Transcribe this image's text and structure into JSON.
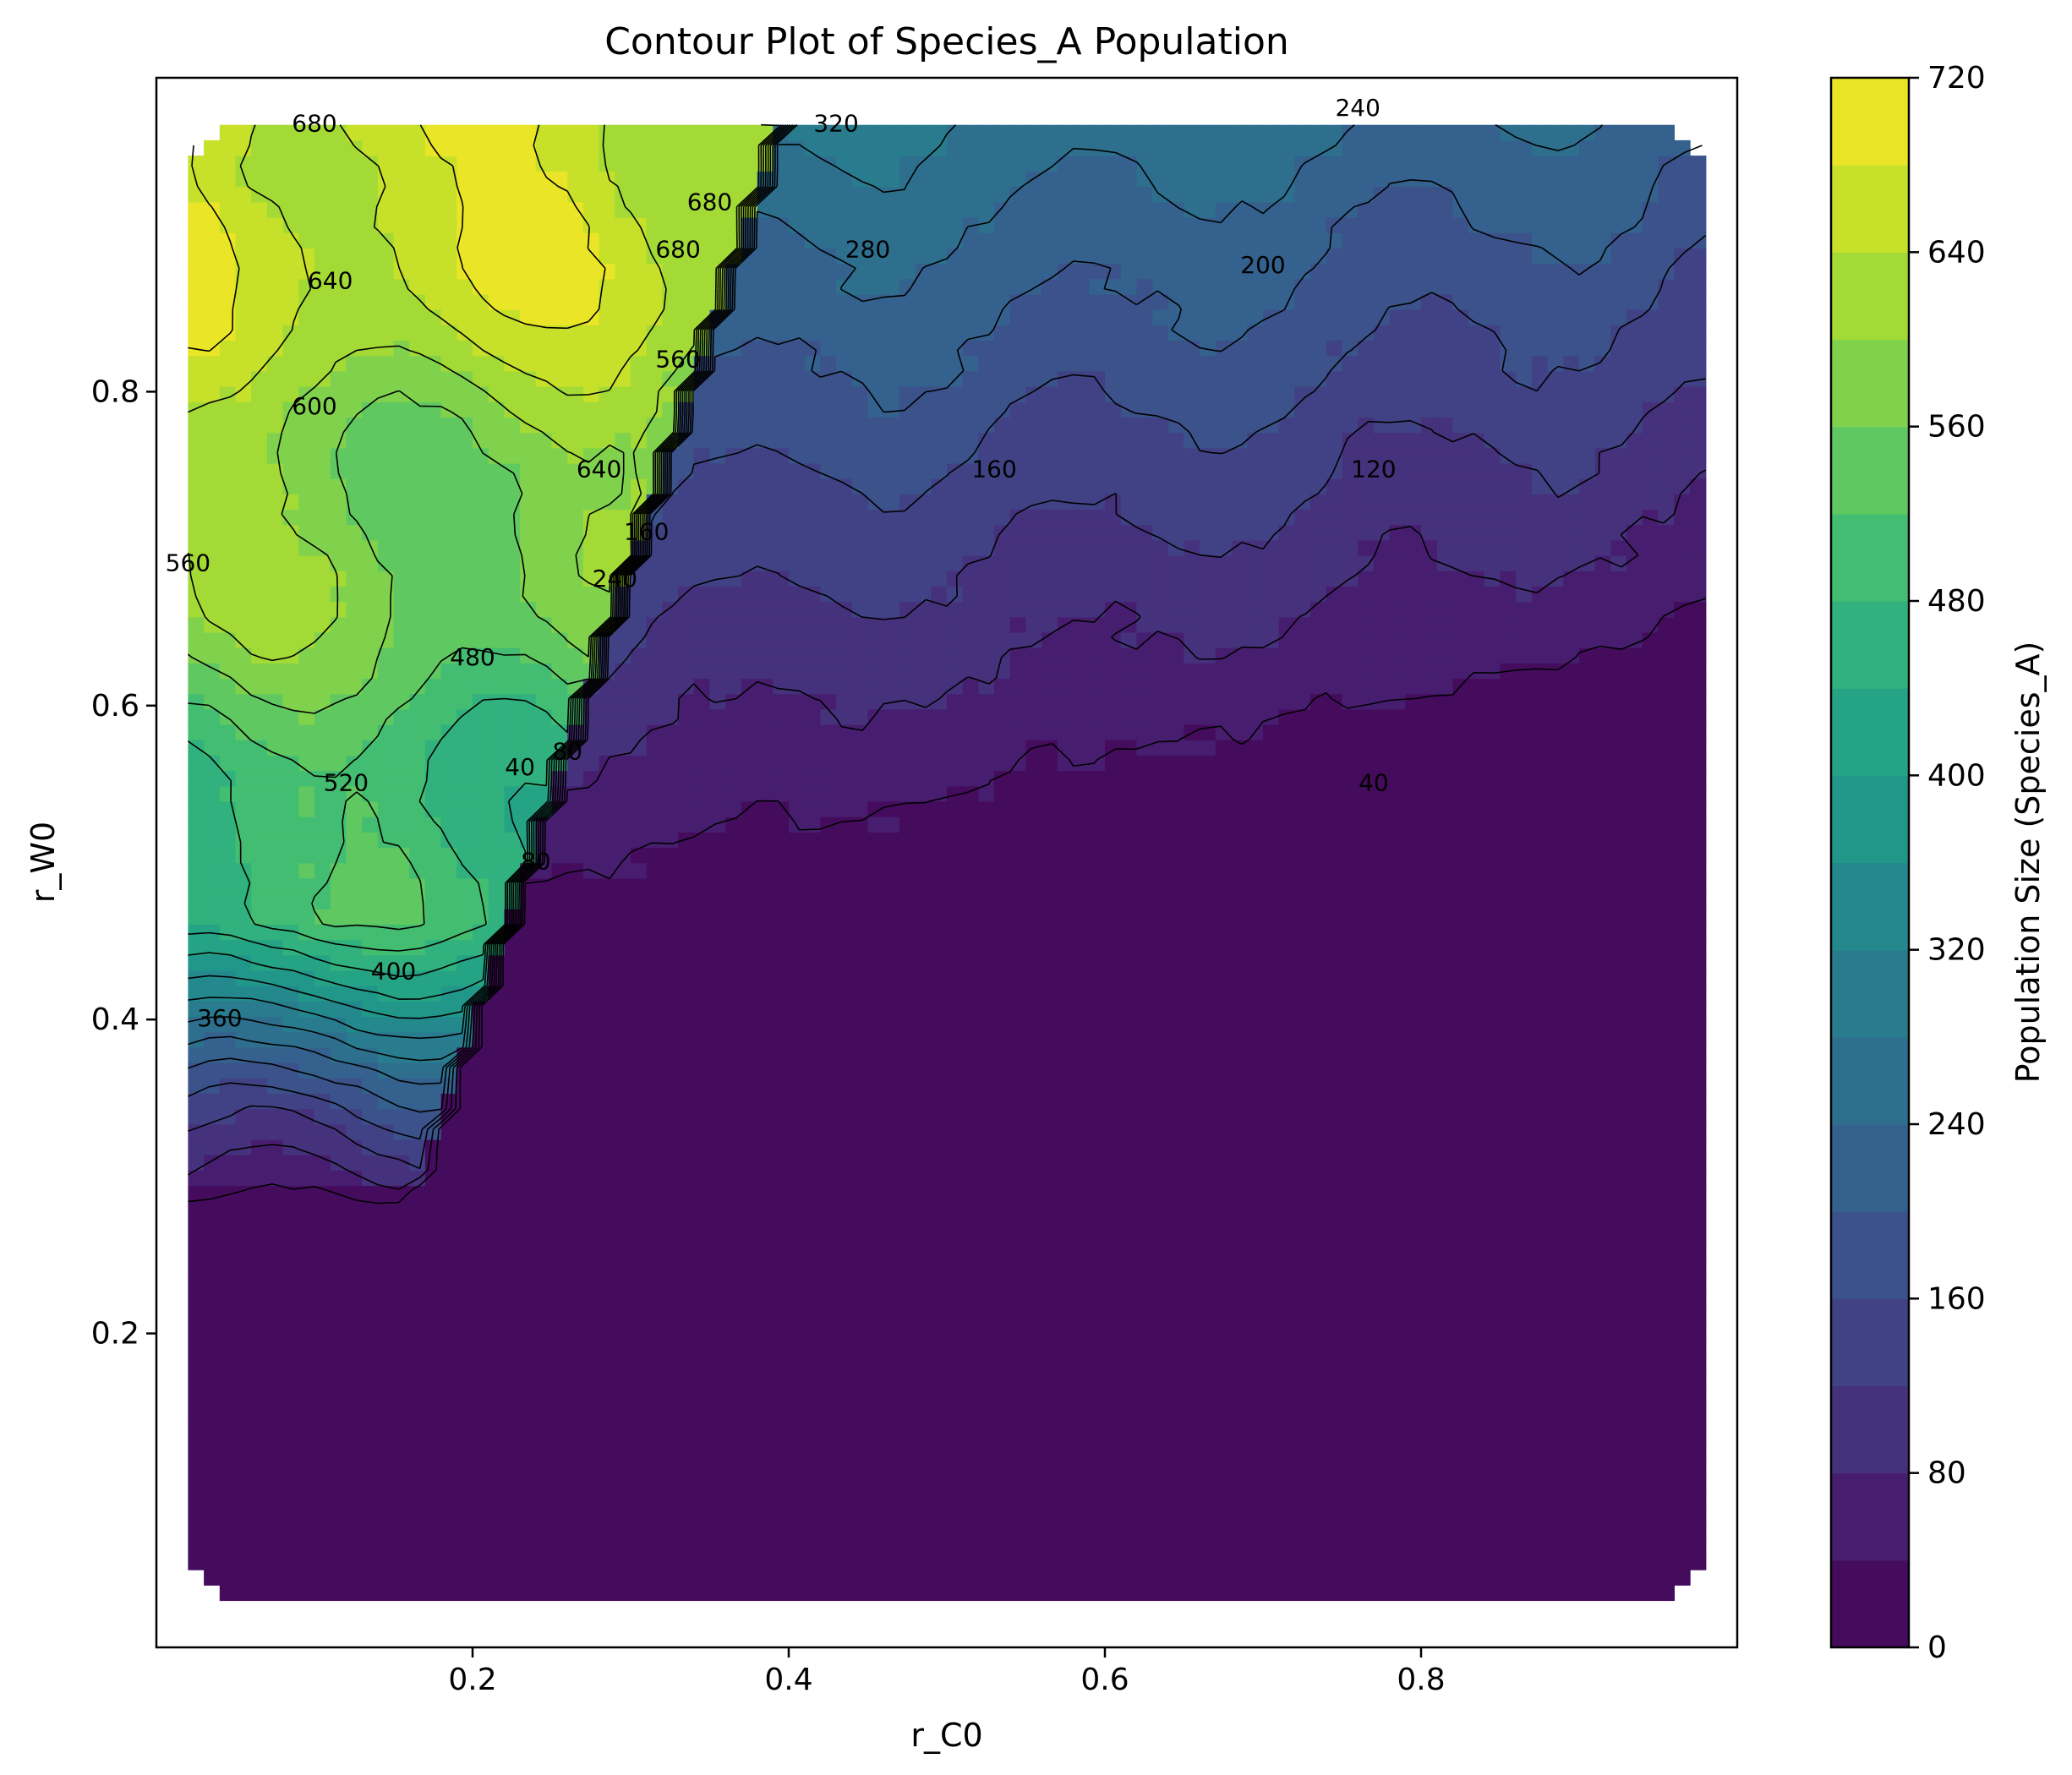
{
  "chart_data": {
    "type": "heatmap",
    "title": "Contour Plot of Species_A Population",
    "xlabel": "r_C0",
    "ylabel": "r_W0",
    "xlim": [
      0.0,
      1.0
    ],
    "ylim": [
      0.0,
      1.0
    ],
    "x_ticks": [
      0.2,
      0.4,
      0.6,
      0.8
    ],
    "x_tick_labels": [
      "0.2",
      "0.4",
      "0.6",
      "0.8"
    ],
    "y_ticks": [
      0.2,
      0.4,
      0.6,
      0.8
    ],
    "y_tick_labels": [
      "0.2",
      "0.4",
      "0.6",
      "0.8"
    ],
    "grid": false,
    "colormap": "viridis",
    "colorbar": {
      "label": "Population Size (Species_A)",
      "range": [
        0,
        720
      ],
      "step": 40,
      "ticks": [
        0,
        80,
        160,
        240,
        320,
        400,
        480,
        560,
        640,
        720
      ],
      "tick_labels": [
        "0",
        "80",
        "160",
        "240",
        "320",
        "400",
        "480",
        "560",
        "640",
        "720"
      ]
    },
    "contour_levels": [
      40,
      80,
      120,
      160,
      200,
      240,
      280,
      320,
      360,
      400,
      440,
      480,
      520,
      560,
      600,
      640,
      680
    ],
    "contour_labels": [
      {
        "text": "680",
        "x": 0.1,
        "y": 0.97
      },
      {
        "text": "680",
        "x": 0.35,
        "y": 0.92
      },
      {
        "text": "680",
        "x": 0.33,
        "y": 0.89
      },
      {
        "text": "640",
        "x": 0.11,
        "y": 0.87
      },
      {
        "text": "600",
        "x": 0.1,
        "y": 0.79
      },
      {
        "text": "560",
        "x": 0.02,
        "y": 0.69
      },
      {
        "text": "640",
        "x": 0.28,
        "y": 0.75
      },
      {
        "text": "560",
        "x": 0.33,
        "y": 0.82
      },
      {
        "text": "320",
        "x": 0.43,
        "y": 0.97
      },
      {
        "text": "280",
        "x": 0.45,
        "y": 0.89
      },
      {
        "text": "240",
        "x": 0.76,
        "y": 0.98
      },
      {
        "text": "200",
        "x": 0.7,
        "y": 0.88
      },
      {
        "text": "160",
        "x": 0.53,
        "y": 0.75
      },
      {
        "text": "120",
        "x": 0.77,
        "y": 0.75
      },
      {
        "text": "160",
        "x": 0.31,
        "y": 0.71
      },
      {
        "text": "240",
        "x": 0.29,
        "y": 0.68
      },
      {
        "text": "480",
        "x": 0.2,
        "y": 0.63
      },
      {
        "text": "520",
        "x": 0.12,
        "y": 0.55
      },
      {
        "text": "80",
        "x": 0.26,
        "y": 0.57
      },
      {
        "text": "40",
        "x": 0.23,
        "y": 0.56
      },
      {
        "text": "80",
        "x": 0.24,
        "y": 0.5
      },
      {
        "text": "400",
        "x": 0.15,
        "y": 0.43
      },
      {
        "text": "360",
        "x": 0.04,
        "y": 0.4
      },
      {
        "text": "40",
        "x": 0.77,
        "y": 0.55
      }
    ],
    "ridge": [
      [
        0.2,
        0.4
      ],
      [
        0.23,
        0.53
      ],
      [
        0.27,
        0.63
      ],
      [
        0.32,
        0.75
      ],
      [
        0.37,
        0.88
      ],
      [
        0.4,
        0.98
      ]
    ],
    "field_description_samples": [
      {
        "x": 0.1,
        "y": 0.9,
        "value": 680
      },
      {
        "x": 0.05,
        "y": 0.7,
        "value": 580
      },
      {
        "x": 0.1,
        "y": 0.55,
        "value": 520
      },
      {
        "x": 0.05,
        "y": 0.42,
        "value": 380
      },
      {
        "x": 0.3,
        "y": 0.8,
        "value": 620
      },
      {
        "x": 0.45,
        "y": 0.95,
        "value": 300
      },
      {
        "x": 0.6,
        "y": 0.9,
        "value": 230
      },
      {
        "x": 0.8,
        "y": 0.9,
        "value": 200
      },
      {
        "x": 0.5,
        "y": 0.75,
        "value": 160
      },
      {
        "x": 0.8,
        "y": 0.78,
        "value": 130
      },
      {
        "x": 0.5,
        "y": 0.65,
        "value": 100
      },
      {
        "x": 0.8,
        "y": 0.65,
        "value": 70
      },
      {
        "x": 0.6,
        "y": 0.3,
        "value": 20
      },
      {
        "x": 0.15,
        "y": 0.15,
        "value": 20
      }
    ]
  }
}
